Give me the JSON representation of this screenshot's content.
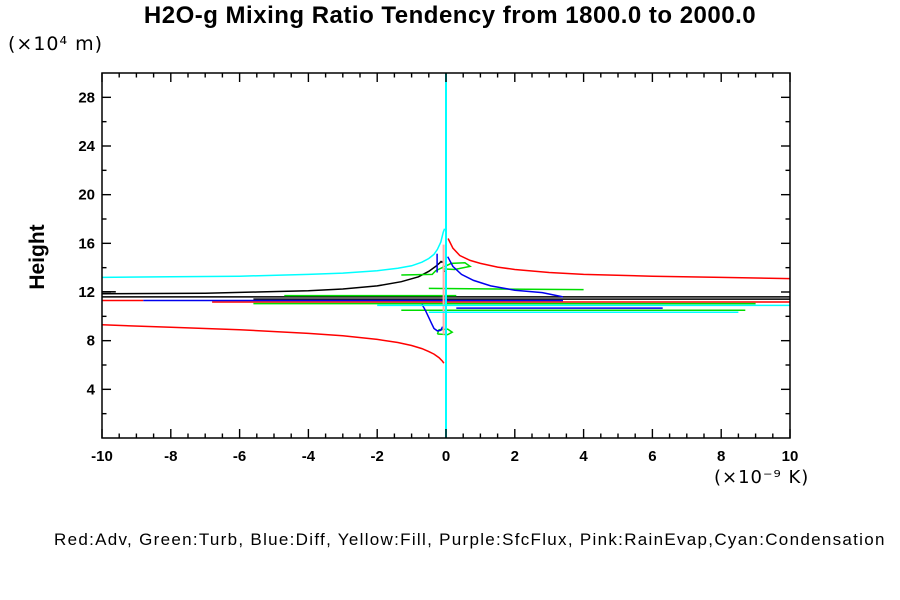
{
  "title": "H2O-g Mixing Ratio Tendency from 1800.0 to 2000.0",
  "y_axis": {
    "unit_label": "(×10⁴  m)",
    "axis_label": "Height",
    "tick_labels": [
      4,
      8,
      12,
      16,
      20,
      24,
      28
    ],
    "major_step": 4,
    "minor_step": 2
  },
  "x_axis": {
    "unit_label": "(×10⁻⁹  K)",
    "tick_labels": [
      -10,
      -8,
      -6,
      -4,
      -2,
      0,
      2,
      4,
      6,
      8,
      10
    ],
    "major_step": 2,
    "minor_step": 0.5
  },
  "legend": {
    "text": "Red:Adv, Green:Turb, Blue:Diff, Yellow:Fill, Purple:SfcFlux, Pink:RainEvap,Cyan:Condensation"
  },
  "colors": {
    "adv": "#ff0000",
    "turb": "#00dd00",
    "diff": "#0000ee",
    "fill": "#ffff00",
    "sfcflux": "#aa00aa",
    "rainevap": "#ffaaaa",
    "condensation": "#00ffff",
    "frame": "#000000"
  },
  "chart_data": {
    "type": "line",
    "title": "H2O-g Mixing Ratio Tendency from 1800.0 to 2000.0",
    "xlabel": "(×10⁻⁹ K)",
    "ylabel": "Height (×10⁴ m)",
    "xlim": [
      -10,
      10
    ],
    "ylim": [
      0,
      30
    ],
    "grid": false,
    "legend_position": "bottom-text-line",
    "series": [
      {
        "name": "total-black",
        "color": "#000000",
        "segments": [
          {
            "points": [
              [
                -10,
                11.85
              ],
              [
                -7,
                11.9
              ],
              [
                -5.5,
                12.0
              ],
              [
                -4,
                12.1
              ],
              [
                -3,
                12.25
              ],
              [
                -2,
                12.5
              ],
              [
                -1.3,
                12.85
              ],
              [
                -0.8,
                13.25
              ],
              [
                -0.5,
                13.7
              ],
              [
                -0.3,
                14.1
              ],
              [
                -0.18,
                14.4
              ],
              [
                -0.13,
                14.55
              ]
            ]
          },
          {
            "points": [
              [
                -0.13,
                14.55
              ],
              [
                -0.07,
                14.05
              ],
              [
                -0.03,
                13.65
              ]
            ],
            "dash": "2 3"
          },
          {
            "points": [
              [
                -10,
                11.6
              ],
              [
                10,
                11.6
              ]
            ]
          },
          {
            "points": [
              [
                -5.6,
                11.42
              ],
              [
                10,
                11.42
              ]
            ]
          },
          {
            "points": [
              [
                -10,
                12.02
              ],
              [
                -9.6,
                12.02
              ]
            ]
          }
        ]
      },
      {
        "name": "adv-red",
        "color": "#ff0000",
        "segments": [
          {
            "points": [
              [
                0.06,
                16.4
              ],
              [
                0.2,
                15.6
              ],
              [
                0.4,
                15.0
              ],
              [
                0.7,
                14.6
              ],
              [
                1.0,
                14.35
              ],
              [
                1.5,
                14.05
              ],
              [
                2.0,
                13.85
              ],
              [
                3.0,
                13.6
              ],
              [
                4.0,
                13.45
              ],
              [
                6.0,
                13.3
              ],
              [
                8.0,
                13.2
              ],
              [
                10,
                13.1
              ]
            ]
          },
          {
            "points": [
              [
                -10,
                9.3
              ],
              [
                -8,
                9.1
              ],
              [
                -6,
                8.9
              ],
              [
                -4,
                8.6
              ],
              [
                -3,
                8.4
              ],
              [
                -2,
                8.1
              ],
              [
                -1.4,
                7.85
              ],
              [
                -1.0,
                7.6
              ],
              [
                -0.7,
                7.35
              ],
              [
                -0.5,
                7.1
              ],
              [
                -0.35,
                6.9
              ],
              [
                -0.2,
                6.6
              ],
              [
                -0.1,
                6.3
              ],
              [
                -0.06,
                6.15
              ]
            ]
          },
          {
            "points": [
              [
                -6.8,
                11.18
              ],
              [
                10,
                11.18
              ]
            ]
          },
          {
            "points": [
              [
                -10,
                11.3
              ],
              [
                -8.8,
                11.3
              ]
            ]
          }
        ]
      },
      {
        "name": "turb-green",
        "color": "#00dd00",
        "segments": [
          {
            "points": [
              [
                -1.3,
                13.4
              ],
              [
                -0.4,
                13.45
              ],
              [
                -0.3,
                13.75
              ],
              [
                0.15,
                14.35
              ],
              [
                0.55,
                14.4
              ],
              [
                0.7,
                14.1
              ],
              [
                0.25,
                13.85
              ],
              [
                -0.1,
                13.9
              ]
            ]
          },
          {
            "points": [
              [
                -0.5,
                12.3
              ],
              [
                1.5,
                12.25
              ],
              [
                4.0,
                12.2
              ]
            ]
          },
          {
            "points": [
              [
                -4.7,
                11.7
              ],
              [
                0.3,
                11.7
              ]
            ]
          },
          {
            "points": [
              [
                -5.6,
                11.05
              ],
              [
                9.0,
                11.05
              ]
            ]
          },
          {
            "points": [
              [
                -1.3,
                10.5
              ],
              [
                8.7,
                10.5
              ]
            ]
          },
          {
            "points": [
              [
                -0.25,
                8.55
              ],
              [
                0.05,
                8.5
              ],
              [
                0.18,
                8.7
              ],
              [
                0.05,
                8.95
              ],
              [
                -0.2,
                8.9
              ],
              [
                -0.25,
                8.55
              ]
            ]
          }
        ]
      },
      {
        "name": "diff-blue",
        "color": "#0000ee",
        "segments": [
          {
            "points": [
              [
                -8.8,
                11.3
              ],
              [
                3.4,
                11.3
              ]
            ]
          },
          {
            "points": [
              [
                -0.26,
                15.15
              ],
              [
                -0.26,
                13.6
              ]
            ]
          },
          {
            "points": [
              [
                0.05,
                14.9
              ],
              [
                0.2,
                14.1
              ],
              [
                0.45,
                13.45
              ],
              [
                0.8,
                12.95
              ],
              [
                1.3,
                12.5
              ],
              [
                2.0,
                12.15
              ],
              [
                2.8,
                11.95
              ],
              [
                3.4,
                11.6
              ]
            ]
          },
          {
            "points": [
              [
                -0.7,
                11.0
              ],
              [
                -0.6,
                10.5
              ],
              [
                -0.5,
                9.9
              ],
              [
                -0.42,
                9.4
              ],
              [
                -0.35,
                9.0
              ],
              [
                -0.25,
                8.8
              ],
              [
                -0.15,
                8.85
              ],
              [
                -0.1,
                9.15
              ]
            ]
          },
          {
            "points": [
              [
                0.3,
                10.68
              ],
              [
                6.3,
                10.68
              ]
            ]
          }
        ]
      },
      {
        "name": "rainevap-pink",
        "color": "#ffaaaa",
        "segments": [
          {
            "points": [
              [
                -0.07,
                8.5
              ],
              [
                -0.07,
                15.9
              ]
            ],
            "width": 2
          }
        ]
      },
      {
        "name": "condensation-cyan",
        "color": "#00ffff",
        "segments": [
          {
            "points": [
              [
                0,
                0
              ],
              [
                0,
                30
              ]
            ],
            "width": 2
          },
          {
            "points": [
              [
                -10,
                13.2
              ],
              [
                -8,
                13.25
              ],
              [
                -6,
                13.3
              ],
              [
                -4,
                13.45
              ],
              [
                -3,
                13.55
              ],
              [
                -2,
                13.75
              ],
              [
                -1.4,
                13.95
              ],
              [
                -1.0,
                14.15
              ],
              [
                -0.7,
                14.45
              ],
              [
                -0.5,
                14.75
              ],
              [
                -0.35,
                15.1
              ],
              [
                -0.25,
                15.5
              ],
              [
                -0.15,
                16.1
              ],
              [
                -0.08,
                16.9
              ],
              [
                -0.04,
                17.2
              ]
            ]
          },
          {
            "points": [
              [
                -2,
                10.9
              ],
              [
                10,
                10.9
              ]
            ]
          },
          {
            "points": [
              [
                -0.5,
                10.33
              ],
              [
                8.5,
                10.33
              ]
            ]
          }
        ]
      }
    ]
  }
}
